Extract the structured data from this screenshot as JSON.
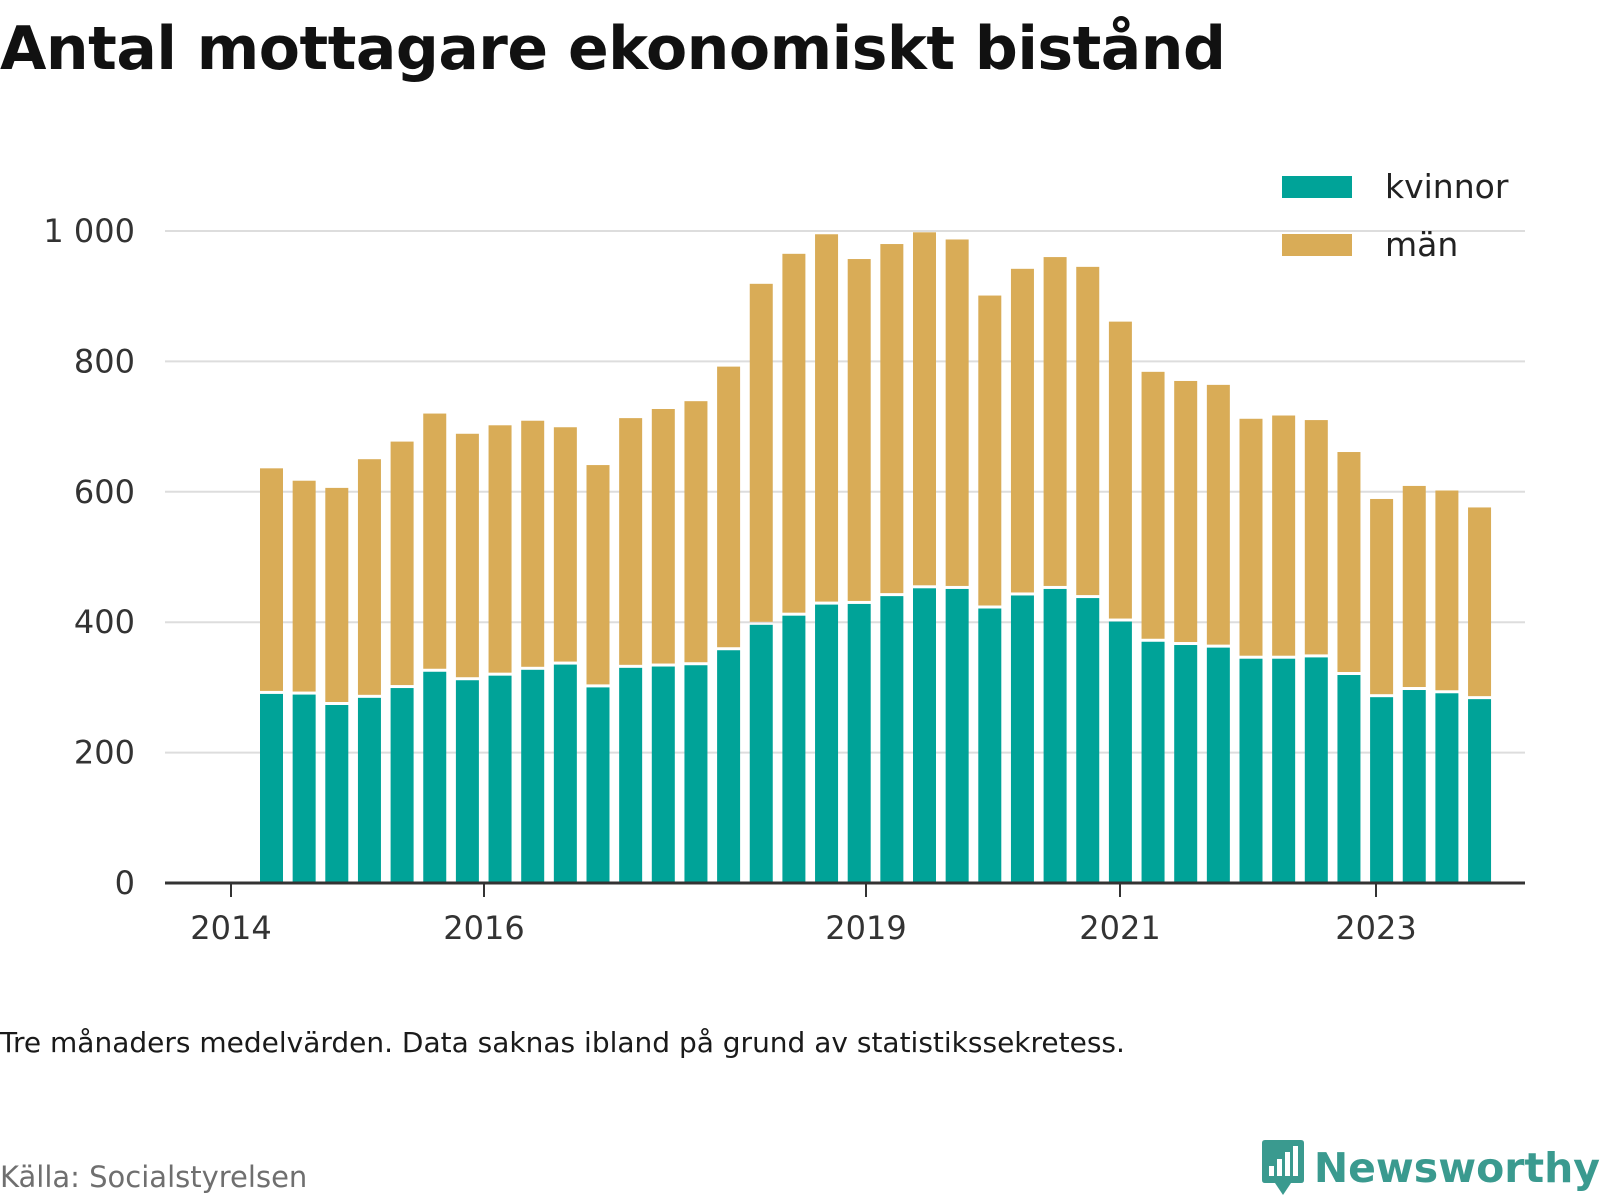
{
  "title": "Antal mottagare ekonomiskt bistånd",
  "note": "Tre månaders medelvärden. Data saknas ibland på grund av statistikssekretess.",
  "source": "Källa: Socialstyrelsen",
  "brand": "Newsworthy",
  "colors": {
    "kvinnor": "#00a398",
    "man": "#d9ac57",
    "grid": "#dddddd",
    "axis": "#333333",
    "brand": "#3a9a8f"
  },
  "chart_data": {
    "type": "bar",
    "stacked": true,
    "legend_position": "top-right",
    "grid": true,
    "ylim": [
      0,
      1000
    ],
    "yticks": [
      {
        "value": 0,
        "label": "0"
      },
      {
        "value": 200,
        "label": "200"
      },
      {
        "value": 400,
        "label": "400"
      },
      {
        "value": 600,
        "label": "600"
      },
      {
        "value": 800,
        "label": "800"
      },
      {
        "value": 1000,
        "label": "1 000"
      }
    ],
    "xticks": [
      "2014",
      "2016",
      "2019",
      "2021",
      "2023"
    ],
    "series": [
      {
        "name": "kvinnor",
        "values": [
          290,
          289,
          273,
          284,
          299,
          324,
          311,
          318,
          327,
          335,
          300,
          330,
          332,
          334,
          357,
          396,
          410,
          427,
          428,
          440,
          452,
          451,
          421,
          441,
          451,
          437,
          401,
          370,
          365,
          361,
          344,
          344,
          346,
          319,
          285,
          296,
          291,
          282
        ]
      },
      {
        "name": "män",
        "values": [
          346,
          328,
          333,
          366,
          378,
          396,
          378,
          384,
          382,
          364,
          341,
          383,
          395,
          405,
          435,
          523,
          555,
          568,
          529,
          540,
          546,
          536,
          480,
          501,
          509,
          508,
          460,
          414,
          405,
          403,
          368,
          373,
          364,
          342,
          304,
          313,
          311,
          294
        ]
      }
    ]
  }
}
